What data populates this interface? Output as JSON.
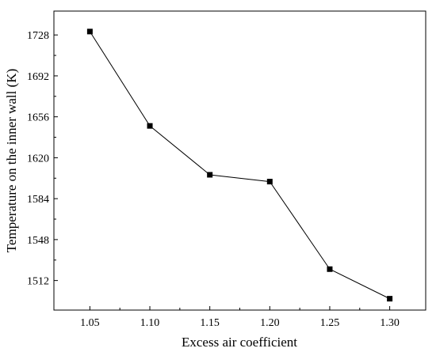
{
  "chart_data": {
    "type": "line",
    "xlabel": "Excess air coefficient",
    "ylabel": "Temperature on the inner wall (K)",
    "x_ticks": [
      "1.05",
      "1.10",
      "1.15",
      "1.20",
      "1.25",
      "1.30"
    ],
    "y_ticks": [
      "1512",
      "1548",
      "1584",
      "1620",
      "1656",
      "1692",
      "1728"
    ],
    "xlim": [
      1.02,
      1.33
    ],
    "ylim": [
      1486,
      1749
    ],
    "grid": false,
    "legend": "none",
    "series": [
      {
        "color": "#000000",
        "marker": "square",
        "x": [
          1.05,
          1.1,
          1.15,
          1.2,
          1.25,
          1.3
        ],
        "y": [
          1731,
          1648,
          1605,
          1599,
          1522,
          1496
        ]
      }
    ]
  }
}
